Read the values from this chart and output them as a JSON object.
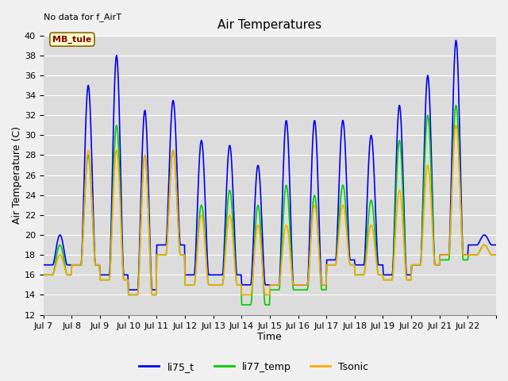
{
  "title": "Air Temperatures",
  "xlabel": "Time",
  "ylabel": "Air Temperature (C)",
  "annotation": "No data for f_AirT",
  "legend_label": "MB_tule",
  "ylim": [
    12,
    40
  ],
  "yticks": [
    12,
    14,
    16,
    18,
    20,
    22,
    24,
    26,
    28,
    30,
    32,
    34,
    36,
    38,
    40
  ],
  "series": {
    "li75_t": {
      "color": "#0000ee",
      "linewidth": 1.2
    },
    "li77_temp": {
      "color": "#00cc00",
      "linewidth": 1.2
    },
    "Tsonic": {
      "color": "#ffaa00",
      "linewidth": 1.2
    }
  },
  "background_color": "#dcdcdc",
  "grid_color": "#ffffff",
  "title_fontsize": 11,
  "axis_fontsize": 9,
  "tick_fontsize": 8,
  "n_days": 16,
  "start_day": 7,
  "day_mins_blue": [
    17,
    17,
    16,
    14.5,
    19,
    16,
    16,
    15,
    15,
    15,
    17.5,
    17,
    16,
    17,
    18,
    19
  ],
  "day_maxs_blue": [
    20,
    35,
    38,
    32.5,
    33.5,
    29.5,
    29,
    27,
    31.5,
    31.5,
    31.5,
    30,
    33,
    36,
    39.5,
    20
  ],
  "day_mins_green": [
    16,
    17,
    15.5,
    14,
    18,
    15,
    15,
    13,
    14.5,
    14.5,
    17,
    16,
    15.5,
    17,
    17.5,
    18
  ],
  "day_maxs_green": [
    19,
    28,
    31,
    28,
    28.5,
    23,
    24.5,
    23,
    25,
    24,
    25,
    23.5,
    29.5,
    32,
    33,
    19
  ],
  "day_mins_orange": [
    16,
    17,
    15.5,
    14,
    18,
    15,
    15,
    14,
    15,
    15,
    17,
    16,
    15.5,
    17,
    18,
    18
  ],
  "day_maxs_orange": [
    18,
    28.5,
    28.5,
    28,
    28.5,
    22,
    22,
    21,
    21,
    23,
    23,
    21,
    24.5,
    27,
    31,
    19
  ]
}
